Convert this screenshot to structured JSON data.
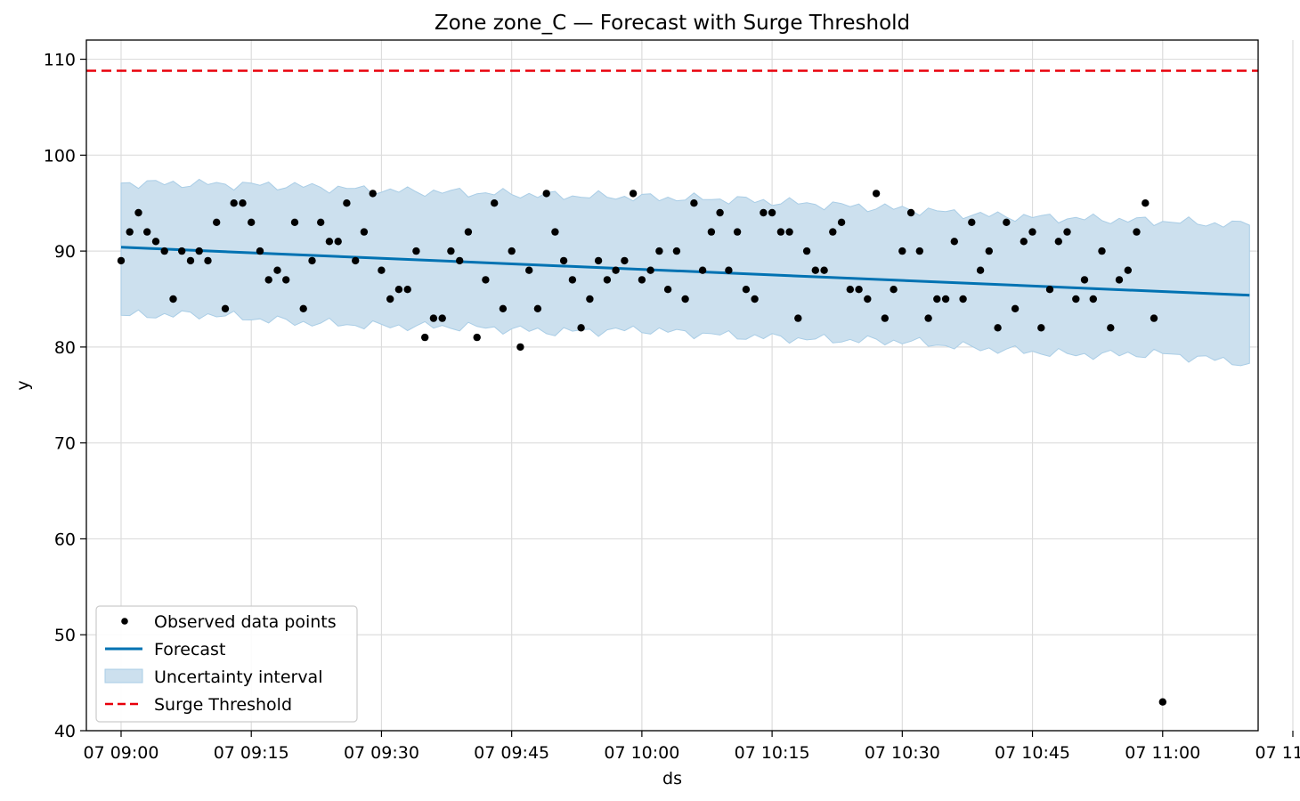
{
  "chart_data": {
    "type": "line",
    "title": "Zone zone_C — Forecast with Surge Threshold",
    "xlabel": "ds",
    "ylabel": "y",
    "xlim": [
      -4,
      131
    ],
    "ylim": [
      40,
      112
    ],
    "x_unit": "minutes",
    "x_ticks": [
      {
        "value": 0,
        "label": "07 09:00"
      },
      {
        "value": 15,
        "label": "07 09:15"
      },
      {
        "value": 30,
        "label": "07 09:30"
      },
      {
        "value": 45,
        "label": "07 09:45"
      },
      {
        "value": 60,
        "label": "07 10:00"
      },
      {
        "value": 75,
        "label": "07 10:15"
      },
      {
        "value": 90,
        "label": "07 10:30"
      },
      {
        "value": 105,
        "label": "07 10:45"
      },
      {
        "value": 120,
        "label": "07 11:00"
      },
      {
        "value": 135,
        "label": "07 11:15"
      }
    ],
    "y_ticks": [
      40,
      50,
      60,
      70,
      80,
      90,
      100,
      110
    ],
    "grid": true,
    "legend_position": "lower-left",
    "colors": {
      "observed": "#000000",
      "forecast": "#0072B2",
      "interval_fill": "#cce0ee",
      "interval_edge": "#a9cde6",
      "threshold": "#e8000b"
    },
    "series": [
      {
        "name": "Observed data points",
        "kind": "scatter",
        "x": [
          0,
          1,
          2,
          3,
          4,
          5,
          6,
          7,
          8,
          9,
          10,
          11,
          12,
          13,
          14,
          15,
          16,
          17,
          18,
          19,
          20,
          21,
          22,
          23,
          24,
          25,
          26,
          27,
          28,
          29,
          30,
          31,
          32,
          33,
          34,
          35,
          36,
          37,
          38,
          39,
          40,
          41,
          42,
          43,
          44,
          45,
          46,
          47,
          48,
          49,
          50,
          51,
          52,
          53,
          54,
          55,
          56,
          57,
          58,
          59,
          60,
          61,
          62,
          63,
          64,
          65,
          66,
          67,
          68,
          69,
          70,
          71,
          72,
          73,
          74,
          75,
          76,
          77,
          78,
          79,
          80,
          81,
          82,
          83,
          84,
          85,
          86,
          87,
          88,
          89,
          90,
          91,
          92,
          93,
          94,
          95,
          96,
          97,
          98,
          99,
          100,
          101,
          102,
          103,
          104,
          105,
          106,
          107,
          108,
          109,
          110,
          111,
          112,
          113,
          114,
          115,
          116,
          117,
          118,
          119,
          120
        ],
        "y": [
          89,
          92,
          94,
          92,
          91,
          90,
          85,
          90,
          89,
          90,
          89,
          93,
          84,
          95,
          95,
          93,
          90,
          87,
          88,
          87,
          93,
          84,
          89,
          93,
          91,
          91,
          95,
          89,
          92,
          96,
          88,
          85,
          86,
          86,
          90,
          81,
          83,
          83,
          90,
          89,
          92,
          81,
          87,
          95,
          84,
          90,
          80,
          88,
          84,
          96,
          92,
          89,
          87,
          82,
          85,
          89,
          87,
          88,
          89,
          96,
          87,
          88,
          90,
          86,
          90,
          85,
          95,
          88,
          92,
          94,
          88,
          92,
          86,
          85,
          94,
          94,
          92,
          92,
          83,
          90,
          88,
          88,
          92,
          93,
          86,
          86,
          85,
          96,
          83,
          86,
          90,
          94,
          90,
          83,
          85,
          85,
          91,
          85,
          93,
          88,
          90,
          82,
          93,
          84,
          91,
          92,
          82,
          86,
          91,
          92,
          85,
          87,
          85,
          90,
          82,
          87,
          88,
          92,
          95,
          83,
          43
        ]
      },
      {
        "name": "Forecast",
        "kind": "line",
        "x": [
          0,
          130
        ],
        "y": [
          90.4,
          85.4
        ]
      },
      {
        "name": "Uncertainty interval",
        "kind": "band",
        "x": [
          0,
          10,
          20,
          30,
          40,
          50,
          60,
          70,
          80,
          90,
          100,
          110,
          120,
          130
        ],
        "lower": [
          83.3,
          83.4,
          82.6,
          82.2,
          82.1,
          81.6,
          81.8,
          81.2,
          80.8,
          80.6,
          79.8,
          79.2,
          79.3,
          78.3
        ],
        "upper": [
          97.1,
          97.0,
          96.8,
          96.3,
          96.1,
          95.8,
          95.6,
          95.4,
          94.9,
          94.4,
          93.7,
          93.4,
          93.1,
          92.7
        ]
      },
      {
        "name": "Surge Threshold",
        "kind": "hline",
        "y": 108.8
      }
    ]
  }
}
